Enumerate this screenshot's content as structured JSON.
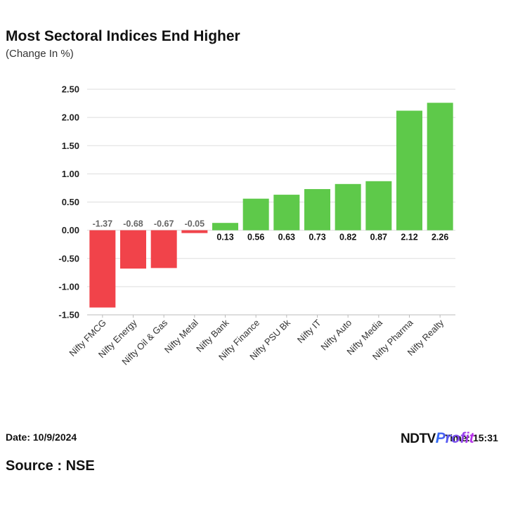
{
  "header": {
    "title": "Most Sectoral Indices End Higher",
    "subtitle": "(Change In %)"
  },
  "footer": {
    "date": "Date: 10/9/2024",
    "source": "Source : NSE",
    "time": "Time: 15:31"
  },
  "brand": {
    "ndtv": "NDTV",
    "profit": "Profit"
  },
  "colors": {
    "positive": "#5ec94a",
    "negative": "#f1434a",
    "grid": "#dddddd",
    "axis": "#bbbbbb"
  },
  "chart_data": {
    "type": "bar",
    "title": "Most Sectoral Indices End Higher",
    "subtitle": "(Change In %)",
    "xlabel": "",
    "ylabel": "",
    "ylim": [
      -1.5,
      2.5
    ],
    "yticks": [
      2.5,
      2.0,
      1.5,
      1.0,
      0.5,
      0.0,
      -0.5,
      -1.0,
      -1.5
    ],
    "ytick_labels": [
      "2.50",
      "2.00",
      "1.50",
      "1.00",
      "0.50",
      "0.00",
      "-0.50",
      "-1.00",
      "-1.50"
    ],
    "grid": true,
    "categories": [
      "Nifty FMCG",
      "Nifty Energy",
      "Nifty Oil & Gas",
      "Nifty Metal",
      "Nifty Bank",
      "Nifty Finance",
      "Nifty PSU Bk",
      "Nifty IT",
      "Nifty Auto",
      "Nifty Media",
      "Nifty Pharma",
      "Nifty Realty"
    ],
    "values": [
      -1.37,
      -0.68,
      -0.67,
      -0.05,
      0.13,
      0.56,
      0.63,
      0.73,
      0.82,
      0.87,
      2.12,
      2.26
    ],
    "value_labels": [
      "-1.37",
      "-0.68",
      "-0.67",
      "-0.05",
      "0.13",
      "0.56",
      "0.63",
      "0.73",
      "0.82",
      "0.87",
      "2.12",
      "2.26"
    ]
  }
}
